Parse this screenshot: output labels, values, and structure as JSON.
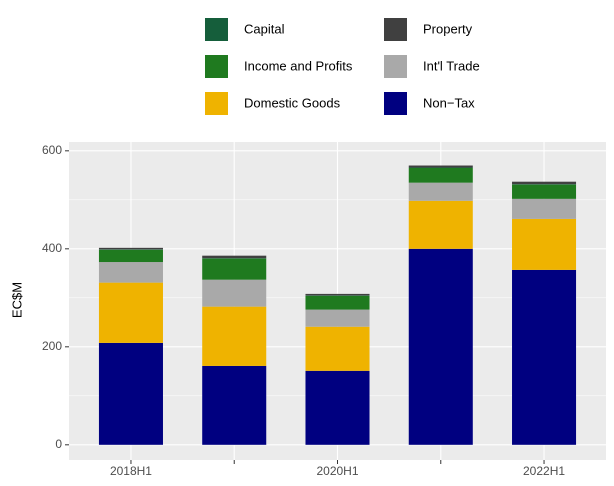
{
  "chart_data": {
    "type": "stacked_bar",
    "y_label": "EC$M",
    "categories": [
      "2018H1",
      null,
      "2020H1",
      null,
      "2022H1"
    ],
    "series": [
      {
        "name": "Non−Tax",
        "color": "#000080",
        "values": [
          208,
          161,
          151,
          400,
          357
        ]
      },
      {
        "name": "Domestic Goods",
        "color": "#efb300",
        "values": [
          123,
          121,
          90,
          98,
          104
        ]
      },
      {
        "name": "Int'l Trade",
        "color": "#a9a9a9",
        "values": [
          42,
          55,
          35,
          37,
          41
        ]
      },
      {
        "name": "Income and Profits",
        "color": "#1f7a1f",
        "values": [
          25,
          43,
          28,
          30,
          29
        ]
      },
      {
        "name": "Capital",
        "color": "#155e3b",
        "values": [
          1,
          1,
          1,
          1,
          1
        ]
      },
      {
        "name": "Property",
        "color": "#404040",
        "values": [
          3,
          5,
          3,
          4,
          5
        ]
      }
    ],
    "ylim": [
      -31,
      618
    ],
    "yticks": [
      0,
      200,
      400,
      600
    ],
    "grid": true
  }
}
